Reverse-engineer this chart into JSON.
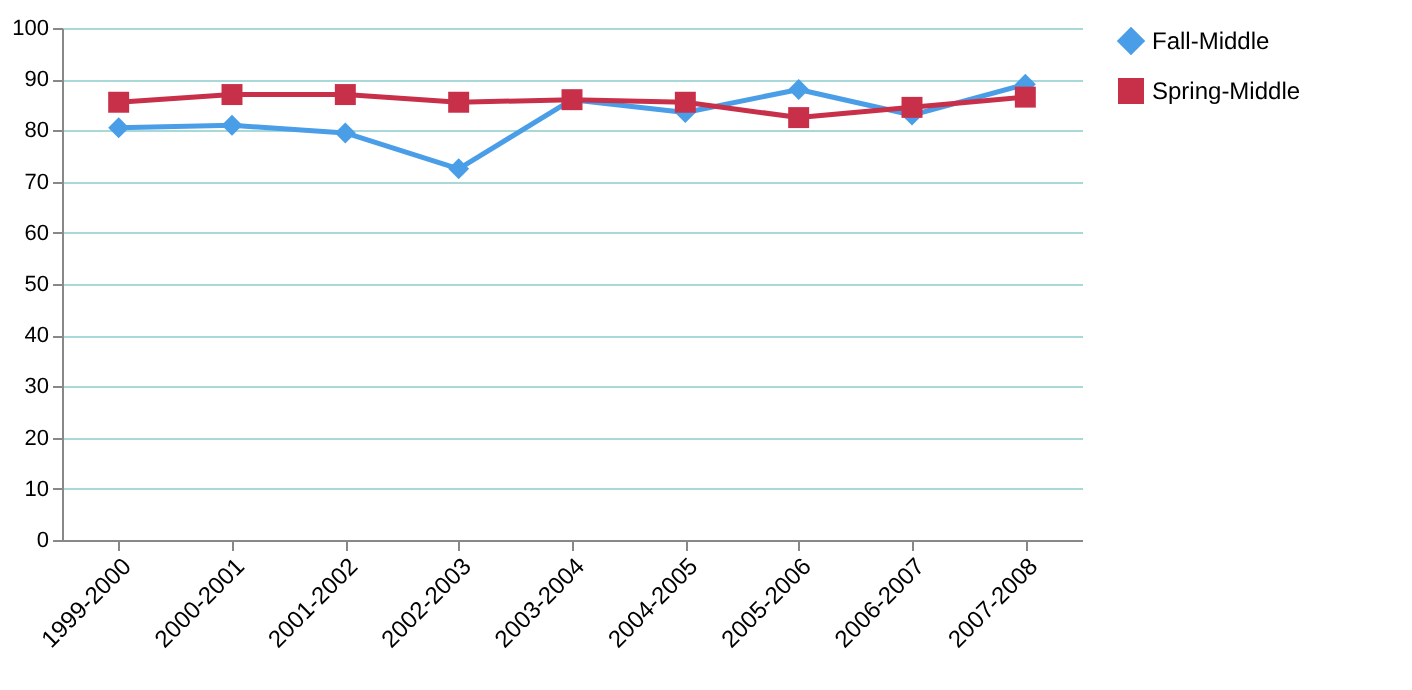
{
  "chart_data": {
    "type": "line",
    "categories": [
      "1999-2000",
      "2000-2001",
      "2001-2002",
      "2002-2003",
      "2003-2004",
      "2004-2005",
      "2005-2006",
      "2006-2007",
      "2007-2008"
    ],
    "series": [
      {
        "name": "Fall-Middle",
        "color": "#4a9ee8",
        "marker": "diamond",
        "values": [
          80.5,
          81,
          79.5,
          72.5,
          86,
          83.5,
          88,
          83,
          89
        ]
      },
      {
        "name": "Spring-Middle",
        "color": "#c8304a",
        "marker": "square",
        "values": [
          85.5,
          87,
          87,
          85.5,
          86,
          85.5,
          82.5,
          84.5,
          86.5
        ]
      }
    ],
    "ylim": [
      0,
      100
    ],
    "yticks": [
      0,
      10,
      20,
      30,
      40,
      50,
      60,
      70,
      80,
      90,
      100
    ],
    "grid": "y",
    "legend": "right"
  }
}
